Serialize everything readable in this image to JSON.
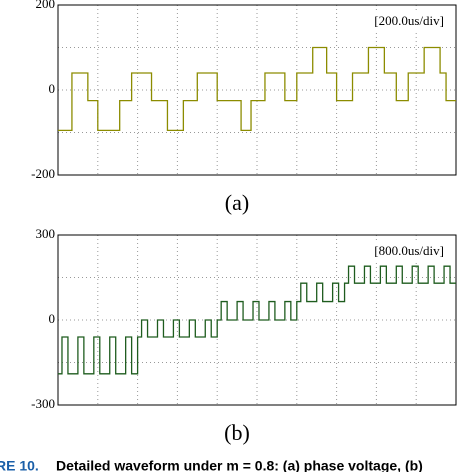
{
  "chart_data": [
    {
      "type": "line",
      "annotation": "[200.0us/div]",
      "panel_label": "(a)",
      "xlim": [
        0,
        10
      ],
      "ylim": [
        -200,
        200
      ],
      "yticks": [
        -200,
        0,
        200
      ],
      "grid": true,
      "series": [
        {
          "color": "#8c8c00",
          "x": [
            0,
            0.35,
            0.35,
            0.75,
            0.75,
            1.0,
            1.0,
            1.55,
            1.55,
            1.85,
            1.85,
            2.35,
            2.35,
            2.75,
            2.75,
            3.15,
            3.15,
            3.5,
            3.5,
            4.0,
            4.0,
            4.6,
            4.6,
            4.85,
            4.85,
            5.2,
            5.2,
            5.7,
            5.7,
            6.0,
            6.0,
            6.4,
            6.4,
            6.75,
            6.75,
            7.0,
            7.0,
            7.4,
            7.4,
            7.8,
            7.8,
            8.2,
            8.2,
            8.5,
            8.5,
            8.8,
            8.8,
            9.2,
            9.2,
            9.6,
            9.6,
            9.75,
            9.75,
            10
          ],
          "values": [
            -95,
            -95,
            40,
            40,
            -25,
            -25,
            -95,
            -95,
            -25,
            -25,
            40,
            40,
            -25,
            -25,
            -95,
            -95,
            -25,
            -25,
            40,
            40,
            -25,
            -25,
            -95,
            -95,
            -25,
            -25,
            40,
            40,
            -25,
            -25,
            40,
            40,
            100,
            100,
            40,
            40,
            -25,
            -25,
            40,
            40,
            100,
            100,
            40,
            40,
            -25,
            -25,
            40,
            40,
            100,
            100,
            40,
            40,
            -25,
            -25
          ]
        }
      ]
    },
    {
      "type": "line",
      "annotation": "[800.0us/div]",
      "panel_label": "(b)",
      "xlim": [
        0,
        10
      ],
      "ylim": [
        -300,
        300
      ],
      "yticks": [
        -300,
        0,
        300
      ],
      "grid": true,
      "series": [
        {
          "color": "#1e5c1e",
          "x": [
            0,
            0.1,
            0.1,
            0.25,
            0.25,
            0.5,
            0.5,
            0.65,
            0.65,
            0.9,
            0.9,
            1.05,
            1.05,
            1.3,
            1.3,
            1.45,
            1.45,
            1.7,
            1.7,
            1.85,
            1.85,
            2.0,
            2.0,
            2.1,
            2.1,
            2.25,
            2.25,
            2.5,
            2.5,
            2.65,
            2.65,
            2.9,
            2.9,
            3.05,
            3.05,
            3.3,
            3.3,
            3.45,
            3.45,
            3.7,
            3.7,
            3.85,
            3.85,
            4.0,
            4.0,
            4.1,
            4.1,
            4.25,
            4.25,
            4.5,
            4.5,
            4.65,
            4.65,
            4.9,
            4.9,
            5.05,
            5.05,
            5.3,
            5.3,
            5.45,
            5.45,
            5.7,
            5.7,
            5.85,
            5.85,
            6.0,
            6.0,
            6.1,
            6.1,
            6.25,
            6.25,
            6.5,
            6.5,
            6.65,
            6.65,
            6.9,
            6.9,
            7.05,
            7.05,
            7.2,
            7.2,
            7.3,
            7.3,
            7.45,
            7.45,
            7.7,
            7.7,
            7.85,
            7.85,
            8.1,
            8.1,
            8.25,
            8.25,
            8.5,
            8.5,
            8.65,
            8.65,
            8.9,
            8.9,
            9.05,
            9.05,
            9.3,
            9.3,
            9.45,
            9.45,
            9.7,
            9.7,
            9.85,
            9.85,
            10
          ],
          "values": [
            -190,
            -190,
            -60,
            -60,
            -190,
            -190,
            -60,
            -60,
            -190,
            -190,
            -60,
            -60,
            -190,
            -190,
            -60,
            -60,
            -190,
            -190,
            -60,
            -60,
            -190,
            -190,
            -60,
            -60,
            0,
            0,
            -60,
            -60,
            0,
            0,
            -60,
            -60,
            0,
            0,
            -60,
            -60,
            0,
            0,
            -60,
            -60,
            0,
            0,
            -60,
            -60,
            0,
            0,
            65,
            65,
            0,
            0,
            65,
            65,
            0,
            0,
            65,
            65,
            0,
            0,
            65,
            65,
            0,
            0,
            65,
            65,
            0,
            0,
            65,
            65,
            130,
            130,
            65,
            65,
            130,
            130,
            65,
            65,
            130,
            130,
            65,
            65,
            130,
            130,
            190,
            190,
            130,
            130,
            190,
            190,
            130,
            130,
            190,
            190,
            130,
            130,
            190,
            190,
            130,
            130,
            190,
            190,
            130,
            130,
            190,
            190,
            130,
            130,
            190,
            190,
            130,
            130
          ]
        }
      ]
    }
  ],
  "caption": {
    "figure_label": "RE 10.",
    "text": "Detailed waveform under m = 0.8: (a) phase voltage, (b)"
  }
}
